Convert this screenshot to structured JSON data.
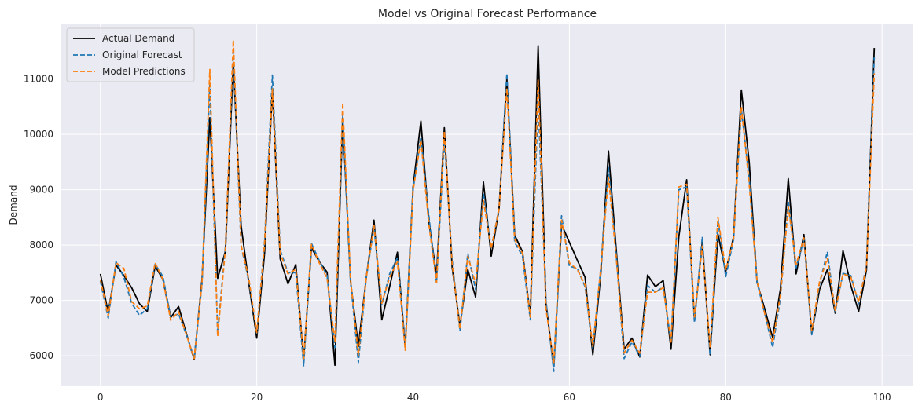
{
  "chart_data": {
    "type": "line",
    "title": "Model vs Original Forecast Performance",
    "xlabel": "",
    "ylabel": "Demand",
    "xlim": [
      -5,
      104
    ],
    "ylim": [
      5450,
      12000
    ],
    "x_ticks": [
      0,
      20,
      40,
      60,
      80,
      100
    ],
    "y_ticks": [
      6000,
      7000,
      8000,
      9000,
      10000,
      11000
    ],
    "grid": true,
    "legend_position": "top-left",
    "x": [
      0,
      1,
      2,
      3,
      4,
      5,
      6,
      7,
      8,
      9,
      10,
      11,
      12,
      13,
      14,
      15,
      16,
      17,
      18,
      19,
      20,
      21,
      22,
      23,
      24,
      25,
      26,
      27,
      28,
      29,
      30,
      31,
      32,
      33,
      34,
      35,
      36,
      37,
      38,
      39,
      40,
      41,
      42,
      43,
      44,
      45,
      46,
      47,
      48,
      49,
      50,
      51,
      52,
      53,
      54,
      55,
      56,
      57,
      58,
      59,
      60,
      61,
      62,
      63,
      64,
      65,
      66,
      67,
      68,
      69,
      70,
      71,
      72,
      73,
      74,
      75,
      76,
      77,
      78,
      79,
      80,
      81,
      82,
      83,
      84,
      85,
      86,
      87,
      88,
      89,
      90,
      91,
      92,
      93,
      94,
      95,
      96,
      97,
      98,
      99
    ],
    "series": [
      {
        "name": "Actual Demand",
        "color": "#000000",
        "dash": "solid",
        "values": [
          7480,
          6780,
          7640,
          7450,
          7230,
          6940,
          6800,
          7620,
          7380,
          6690,
          6890,
          6400,
          5930,
          7380,
          10300,
          7400,
          7890,
          11300,
          8350,
          7300,
          6320,
          7850,
          10800,
          7750,
          7300,
          7650,
          5930,
          7950,
          7700,
          7510,
          5830,
          10300,
          7350,
          6170,
          7400,
          8450,
          6650,
          7250,
          7870,
          6150,
          9050,
          10240,
          8450,
          7450,
          10120,
          7600,
          6540,
          7560,
          7060,
          9140,
          7800,
          8650,
          11000,
          8180,
          7880,
          6720,
          11600,
          6950,
          5800,
          8370,
          8050,
          7730,
          7420,
          6020,
          7450,
          9700,
          7900,
          6120,
          6320,
          5980,
          7460,
          7250,
          7360,
          6120,
          8150,
          9180,
          6650,
          8050,
          6020,
          8200,
          7520,
          8150,
          10800,
          9500,
          7330,
          6840,
          6330,
          7210,
          9200,
          7480,
          8190,
          6400,
          7200,
          7560,
          6770,
          7900,
          7270,
          6800,
          7550,
          11560
        ]
      },
      {
        "name": "Original Forecast",
        "color": "#1f77b4",
        "dash": "dashed",
        "values": [
          7350,
          6680,
          7700,
          7420,
          6950,
          6730,
          6850,
          7660,
          7430,
          6700,
          6760,
          6380,
          5950,
          7300,
          10900,
          6420,
          7990,
          11500,
          7980,
          7350,
          6410,
          8050,
          11070,
          7910,
          7500,
          7500,
          5820,
          8030,
          7720,
          7450,
          6150,
          10350,
          7360,
          5880,
          7400,
          8320,
          6920,
          7480,
          7770,
          6180,
          9000,
          9950,
          8550,
          7320,
          9900,
          7730,
          6450,
          7850,
          7200,
          8940,
          7930,
          8670,
          11100,
          8050,
          7800,
          6650,
          10600,
          7000,
          5720,
          8530,
          7620,
          7580,
          7250,
          6140,
          7550,
          9400,
          7800,
          5950,
          6250,
          5990,
          7270,
          7150,
          7240,
          6250,
          9000,
          9050,
          6600,
          8150,
          6010,
          8450,
          7430,
          8100,
          10450,
          9200,
          7330,
          6760,
          6150,
          7050,
          8800,
          7590,
          8100,
          6380,
          7300,
          7880,
          6790,
          7490,
          7450,
          6940,
          7640,
          11400
        ]
      },
      {
        "name": "Model Predictions",
        "color": "#ff7f0e",
        "dash": "dashed",
        "values": [
          7380,
          6720,
          7680,
          7580,
          6980,
          6850,
          6900,
          7680,
          7380,
          6640,
          6800,
          6380,
          5950,
          7320,
          11170,
          6350,
          7950,
          11700,
          8000,
          7380,
          6420,
          8020,
          10820,
          7850,
          7480,
          7560,
          5950,
          8010,
          7680,
          7400,
          6250,
          10570,
          7390,
          6010,
          7400,
          8350,
          6950,
          7420,
          7700,
          6100,
          8980,
          9900,
          8400,
          7320,
          10050,
          7660,
          6480,
          7800,
          7300,
          8800,
          7940,
          8650,
          10830,
          8100,
          7850,
          6700,
          10980,
          6850,
          5880,
          8450,
          7680,
          7560,
          7280,
          6170,
          7560,
          9230,
          7760,
          6050,
          6280,
          6050,
          7150,
          7150,
          7230,
          6250,
          9050,
          9100,
          6700,
          7980,
          6150,
          8500,
          7550,
          8120,
          10500,
          9100,
          7350,
          6750,
          6240,
          7100,
          8700,
          7650,
          8130,
          6450,
          7340,
          7760,
          6820,
          7480,
          7420,
          6970,
          7600,
          11100
        ]
      }
    ]
  }
}
